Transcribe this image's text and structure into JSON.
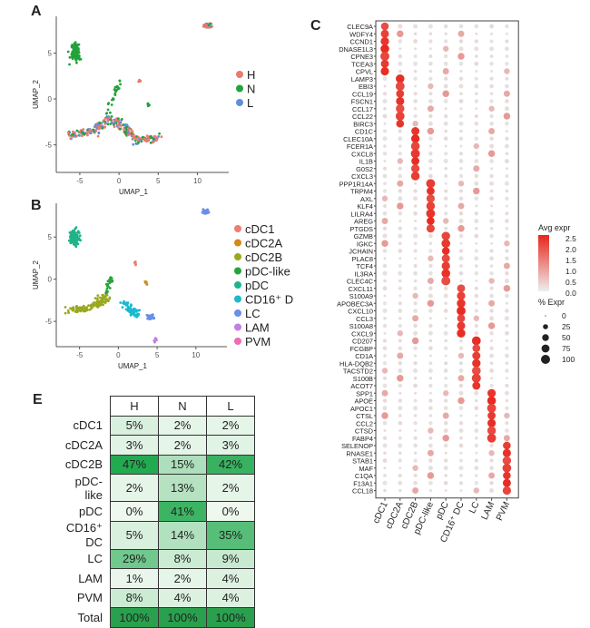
{
  "panels": {
    "a": "A",
    "b": "B",
    "c": "C",
    "e": "E"
  },
  "umap": {
    "xlabel": "UMAP_1",
    "ylabel": "UMAP_2",
    "xticks": [
      "-5",
      "0",
      "5",
      "10"
    ],
    "yticks": [
      "5",
      "0",
      "-5"
    ],
    "legend_a": [
      {
        "label": "H",
        "color": "#ec7a6e"
      },
      {
        "label": "N",
        "color": "#22a33b"
      },
      {
        "label": "L",
        "color": "#5f8ee0"
      }
    ],
    "legend_b": [
      {
        "label": "cDC1",
        "color": "#ef7d73"
      },
      {
        "label": "cDC2A",
        "color": "#d08b1e"
      },
      {
        "label": "cDC2B",
        "color": "#9aa81f"
      },
      {
        "label": "pDC-like",
        "color": "#27a33c"
      },
      {
        "label": "pDC",
        "color": "#20b38a"
      },
      {
        "label": "CD16⁺ D",
        "color": "#1cb9d0"
      },
      {
        "label": "LC",
        "color": "#6a8fe8"
      },
      {
        "label": "LAM",
        "color": "#c27fe3"
      },
      {
        "label": "PVM",
        "color": "#ee6bb7"
      }
    ]
  },
  "chart_data": {
    "type": "heatmap",
    "title": "",
    "genes": [
      "CLEC9A",
      "WDFY4",
      "CCND1",
      "DNASE1L3",
      "CPNE3",
      "TCEA3",
      "CPVL",
      "LAMP3",
      "EBI3",
      "CCL19",
      "FSCN1",
      "CCL17",
      "CCL22",
      "BIRC3",
      "CD1C",
      "CLEC10A",
      "FCER1A",
      "CXCL8",
      "IL1B",
      "G0S2",
      "CXCL3",
      "PPP1R14A",
      "TRPM4",
      "AXL",
      "KLF4",
      "LILRA4",
      "AREG",
      "PTGDS",
      "GZMB",
      "IGKC",
      "JCHAIN",
      "PLAC8",
      "TCF4",
      "IL3RA",
      "CLEC4C",
      "CXCL11",
      "S100A9",
      "APOBEC3A",
      "CXCL10",
      "CCL3",
      "S100A8",
      "CXCL9",
      "CD207",
      "FCGBP",
      "CD1A",
      "HLA-DQB2",
      "TACSTD2",
      "S100B",
      "ACOT7",
      "SPP1",
      "APOE",
      "APOC1",
      "CTSL",
      "CCL2",
      "CTSD",
      "FABP4",
      "SELENOP",
      "RNASE1",
      "STAB1",
      "MAF",
      "C1QA",
      "F13A1",
      "CCL18"
    ],
    "gene_group": [
      0,
      0,
      0,
      0,
      0,
      0,
      0,
      1,
      1,
      1,
      1,
      1,
      1,
      1,
      2,
      2,
      2,
      2,
      2,
      2,
      2,
      3,
      3,
      3,
      3,
      3,
      3,
      3,
      4,
      4,
      4,
      4,
      4,
      4,
      4,
      5,
      5,
      5,
      5,
      5,
      5,
      5,
      6,
      6,
      6,
      6,
      6,
      6,
      6,
      7,
      7,
      7,
      7,
      7,
      7,
      7,
      8,
      8,
      8,
      8,
      8,
      8,
      8
    ],
    "clusters": [
      "cDC1",
      "cDC2A",
      "cDC2B",
      "pDC-like",
      "pDC",
      "CD16⁺ DC",
      "LC",
      "LAM",
      "PVM"
    ],
    "legend_expr_title": "Avg expr",
    "legend_expr_ticks": [
      "2.5",
      "2.0",
      "1.5",
      "1.0",
      "0.5",
      "0.0"
    ],
    "expr_range": [
      0,
      2.5
    ],
    "legend_pct_title": "% Expr",
    "legend_pct_values": [
      0,
      25,
      50,
      75,
      100
    ]
  },
  "table": {
    "headers": [
      "H",
      "N",
      "L"
    ],
    "rows": [
      {
        "label": "cDC1",
        "values": [
          "5%",
          "2%",
          "2%"
        ],
        "num": [
          5,
          2,
          2
        ]
      },
      {
        "label": "cDC2A",
        "values": [
          "3%",
          "2%",
          "3%"
        ],
        "num": [
          3,
          2,
          3
        ]
      },
      {
        "label": "cDC2B",
        "values": [
          "47%",
          "15%",
          "42%"
        ],
        "num": [
          47,
          15,
          42
        ]
      },
      {
        "label": "pDC-like",
        "values": [
          "2%",
          "13%",
          "2%"
        ],
        "num": [
          2,
          13,
          2
        ]
      },
      {
        "label": "pDC",
        "values": [
          "0%",
          "41%",
          "0%"
        ],
        "num": [
          0,
          41,
          0
        ]
      },
      {
        "label": "CD16⁺ DC",
        "values": [
          "5%",
          "14%",
          "35%"
        ],
        "num": [
          5,
          14,
          35
        ]
      },
      {
        "label": "LC",
        "values": [
          "29%",
          "8%",
          "9%"
        ],
        "num": [
          29,
          8,
          9
        ]
      },
      {
        "label": "LAM",
        "values": [
          "1%",
          "2%",
          "4%"
        ],
        "num": [
          1,
          2,
          4
        ]
      },
      {
        "label": "PVM",
        "values": [
          "8%",
          "4%",
          "4%"
        ],
        "num": [
          8,
          4,
          4
        ]
      },
      {
        "label": "Total",
        "values": [
          "100%",
          "100%",
          "100%"
        ],
        "num": [
          100,
          100,
          100
        ]
      }
    ]
  }
}
